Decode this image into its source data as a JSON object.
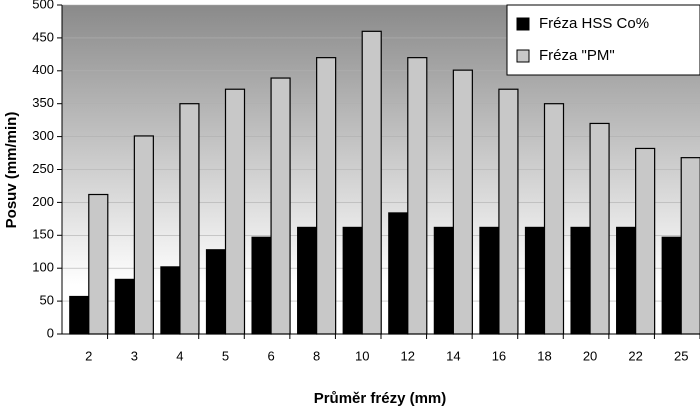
{
  "chart_data": {
    "type": "bar",
    "categories": [
      "2",
      "3",
      "4",
      "5",
      "6",
      "8",
      "10",
      "12",
      "14",
      "16",
      "18",
      "20",
      "22",
      "25"
    ],
    "series": [
      {
        "name": "Fréza HSS Co%",
        "color": "#000000",
        "values": [
          57,
          83,
          102,
          128,
          147,
          162,
          162,
          184,
          162,
          162,
          162,
          162,
          162,
          147
        ]
      },
      {
        "name": "Fréza \"PM\"",
        "color": "#c8c8c8",
        "values": [
          212,
          301,
          350,
          372,
          389,
          420,
          460,
          420,
          401,
          372,
          350,
          320,
          282,
          268
        ]
      }
    ],
    "xlabel": "Průměr frézy (mm)",
    "ylabel": "Posuv (mm/min)",
    "ylim": [
      0,
      500
    ],
    "yticks": [
      0,
      50,
      100,
      150,
      200,
      250,
      300,
      350,
      400,
      450,
      500
    ],
    "grid": true,
    "legend": "top-right"
  }
}
